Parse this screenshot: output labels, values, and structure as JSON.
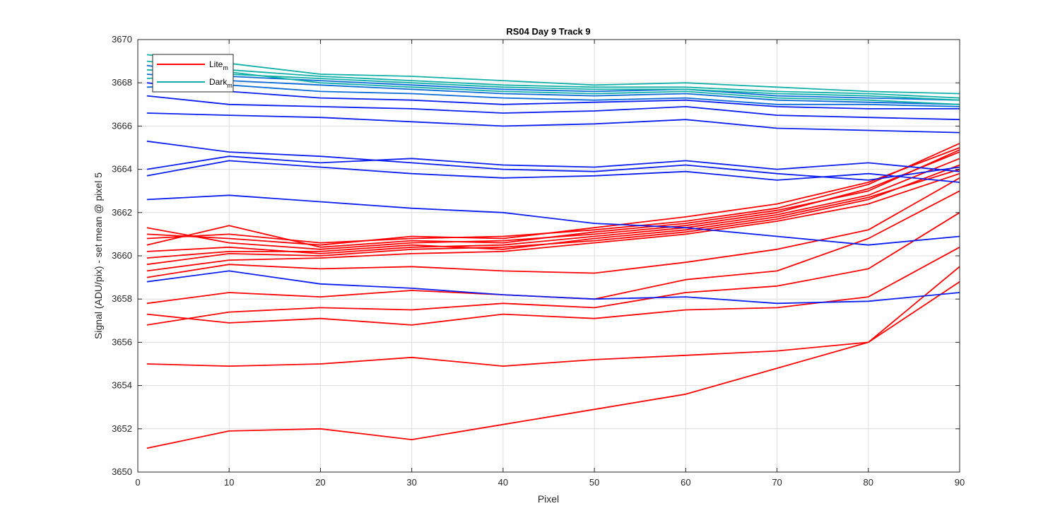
{
  "chart_data": {
    "type": "line",
    "title": "RS04 Day 9 Track 9",
    "xlabel": "Pixel",
    "ylabel": "Signal (ADU/pix) - set mean @ pixel 5",
    "xlim": [
      0,
      90
    ],
    "ylim": [
      3650,
      3670
    ],
    "xticks": [
      "0",
      "10",
      "20",
      "30",
      "40",
      "50",
      "60",
      "70",
      "80",
      "90"
    ],
    "yticks": [
      "3650",
      "3652",
      "3654",
      "3656",
      "3658",
      "3660",
      "3662",
      "3664",
      "3666",
      "3668",
      "3670"
    ],
    "grid": true,
    "legend": {
      "placement": "top-left",
      "entries": [
        {
          "base": "Lite",
          "sub": "m",
          "color": "#ff0000"
        },
        {
          "base": "Dark",
          "sub": "m",
          "color": "#11b0a8"
        }
      ]
    },
    "colors": {
      "lite": "#ff0000",
      "dark_teal": "#11b0a8",
      "dark_blue": "#0a1ef0",
      "dark_mid": "#0a6cd8"
    },
    "x": [
      1,
      10,
      20,
      30,
      40,
      50,
      60,
      70,
      80,
      90
    ],
    "series": [
      {
        "group": "lite",
        "values": [
          3651.1,
          3651.9,
          3652.0,
          3651.5,
          3652.2,
          3652.9,
          3653.6,
          3654.8,
          3656.0,
          3659.5
        ]
      },
      {
        "group": "lite",
        "values": [
          3655.0,
          3654.9,
          3655.0,
          3655.3,
          3654.9,
          3655.2,
          3655.4,
          3655.6,
          3656.0,
          3658.8
        ]
      },
      {
        "group": "lite",
        "values": [
          3657.3,
          3656.9,
          3657.1,
          3656.8,
          3657.3,
          3657.1,
          3657.5,
          3657.6,
          3658.1,
          3660.4
        ]
      },
      {
        "group": "lite",
        "values": [
          3656.8,
          3657.4,
          3657.6,
          3657.5,
          3657.8,
          3657.6,
          3658.3,
          3658.6,
          3659.4,
          3662.0
        ]
      },
      {
        "group": "lite",
        "values": [
          3657.8,
          3658.3,
          3658.1,
          3658.4,
          3658.2,
          3658.0,
          3658.9,
          3659.3,
          3660.8,
          3663.0
        ]
      },
      {
        "group": "lite",
        "values": [
          3659.0,
          3659.6,
          3659.4,
          3659.5,
          3659.3,
          3659.2,
          3659.7,
          3660.3,
          3661.2,
          3663.6
        ]
      },
      {
        "group": "lite",
        "values": [
          3661.3,
          3660.6,
          3660.3,
          3660.6,
          3660.7,
          3661.0,
          3661.4,
          3662.0,
          3663.1,
          3664.8
        ]
      },
      {
        "group": "lite",
        "values": [
          3660.2,
          3660.4,
          3660.1,
          3660.4,
          3660.5,
          3660.9,
          3661.3,
          3661.9,
          3662.8,
          3664.5
        ]
      },
      {
        "group": "lite",
        "values": [
          3659.6,
          3660.1,
          3660.0,
          3660.3,
          3660.4,
          3660.7,
          3661.1,
          3661.7,
          3662.6,
          3664.2
        ]
      },
      {
        "group": "lite",
        "values": [
          3660.8,
          3661.0,
          3660.6,
          3660.8,
          3660.9,
          3661.2,
          3661.6,
          3662.2,
          3663.3,
          3665.2
        ]
      },
      {
        "group": "lite",
        "values": [
          3659.9,
          3660.2,
          3660.2,
          3660.5,
          3660.3,
          3660.8,
          3661.2,
          3661.8,
          3662.7,
          3664.0
        ]
      },
      {
        "group": "lite",
        "values": [
          3660.5,
          3661.4,
          3660.4,
          3660.7,
          3660.6,
          3661.1,
          3661.5,
          3662.1,
          3663.0,
          3664.9
        ]
      },
      {
        "group": "lite",
        "values": [
          3659.3,
          3659.8,
          3659.9,
          3660.1,
          3660.2,
          3660.6,
          3661.0,
          3661.6,
          3662.4,
          3663.8
        ]
      },
      {
        "group": "lite",
        "values": [
          3661.0,
          3660.8,
          3660.5,
          3660.9,
          3660.8,
          3661.3,
          3661.8,
          3662.4,
          3663.4,
          3665.0
        ]
      },
      {
        "group": "dark_blue",
        "values": [
          3662.6,
          3662.8,
          3662.5,
          3662.2,
          3662.0,
          3661.5,
          3661.3,
          3660.9,
          3660.5,
          3660.9
        ]
      },
      {
        "group": "dark_blue",
        "values": [
          3665.3,
          3664.8,
          3664.6,
          3664.3,
          3664.0,
          3663.9,
          3664.2,
          3663.8,
          3663.5,
          3664.1
        ]
      },
      {
        "group": "dark_blue",
        "values": [
          3664.0,
          3664.6,
          3664.3,
          3664.5,
          3664.2,
          3664.1,
          3664.4,
          3664.0,
          3664.3,
          3663.9
        ]
      },
      {
        "group": "dark_blue",
        "values": [
          3663.7,
          3664.4,
          3664.1,
          3663.8,
          3663.6,
          3663.7,
          3663.9,
          3663.5,
          3663.8,
          3663.4
        ]
      },
      {
        "group": "dark_blue",
        "values": [
          3658.8,
          3659.3,
          3658.7,
          3658.5,
          3658.2,
          3658.0,
          3658.1,
          3657.8,
          3657.9,
          3658.3
        ]
      },
      {
        "group": "dark_blue",
        "values": [
          3666.6,
          3666.5,
          3666.4,
          3666.2,
          3666.0,
          3666.1,
          3666.3,
          3665.9,
          3665.8,
          3665.7
        ]
      },
      {
        "group": "dark_blue",
        "values": [
          3667.4,
          3667.0,
          3666.9,
          3666.8,
          3666.6,
          3666.7,
          3666.9,
          3666.5,
          3666.4,
          3666.3
        ]
      },
      {
        "group": "dark_blue",
        "values": [
          3668.0,
          3667.6,
          3667.3,
          3667.2,
          3667.0,
          3667.1,
          3667.2,
          3666.9,
          3666.8,
          3666.8
        ]
      },
      {
        "group": "dark_mid",
        "values": [
          3668.4,
          3668.1,
          3667.9,
          3667.7,
          3667.5,
          3667.4,
          3667.5,
          3667.2,
          3667.1,
          3667.0
        ]
      },
      {
        "group": "dark_mid",
        "values": [
          3668.8,
          3668.3,
          3668.1,
          3667.9,
          3667.7,
          3667.6,
          3667.7,
          3667.4,
          3667.3,
          3667.2
        ]
      },
      {
        "group": "dark_mid",
        "values": [
          3667.8,
          3667.9,
          3667.6,
          3667.5,
          3667.3,
          3667.2,
          3667.3,
          3667.0,
          3667.0,
          3666.9
        ]
      },
      {
        "group": "dark_teal",
        "values": [
          3669.0,
          3668.6,
          3668.3,
          3668.1,
          3667.9,
          3667.8,
          3667.8,
          3667.6,
          3667.5,
          3667.3
        ]
      },
      {
        "group": "dark_teal",
        "values": [
          3668.6,
          3668.4,
          3668.2,
          3668.0,
          3667.8,
          3667.7,
          3667.7,
          3667.5,
          3667.4,
          3667.2
        ]
      },
      {
        "group": "dark_teal",
        "values": [
          3669.3,
          3668.9,
          3668.4,
          3668.3,
          3668.1,
          3667.9,
          3668.0,
          3667.8,
          3667.6,
          3667.5
        ]
      },
      {
        "group": "dark_teal",
        "values": [
          3668.2,
          3668.5,
          3668.0,
          3667.8,
          3667.6,
          3667.5,
          3667.6,
          3667.3,
          3667.2,
          3667.0
        ]
      }
    ]
  }
}
